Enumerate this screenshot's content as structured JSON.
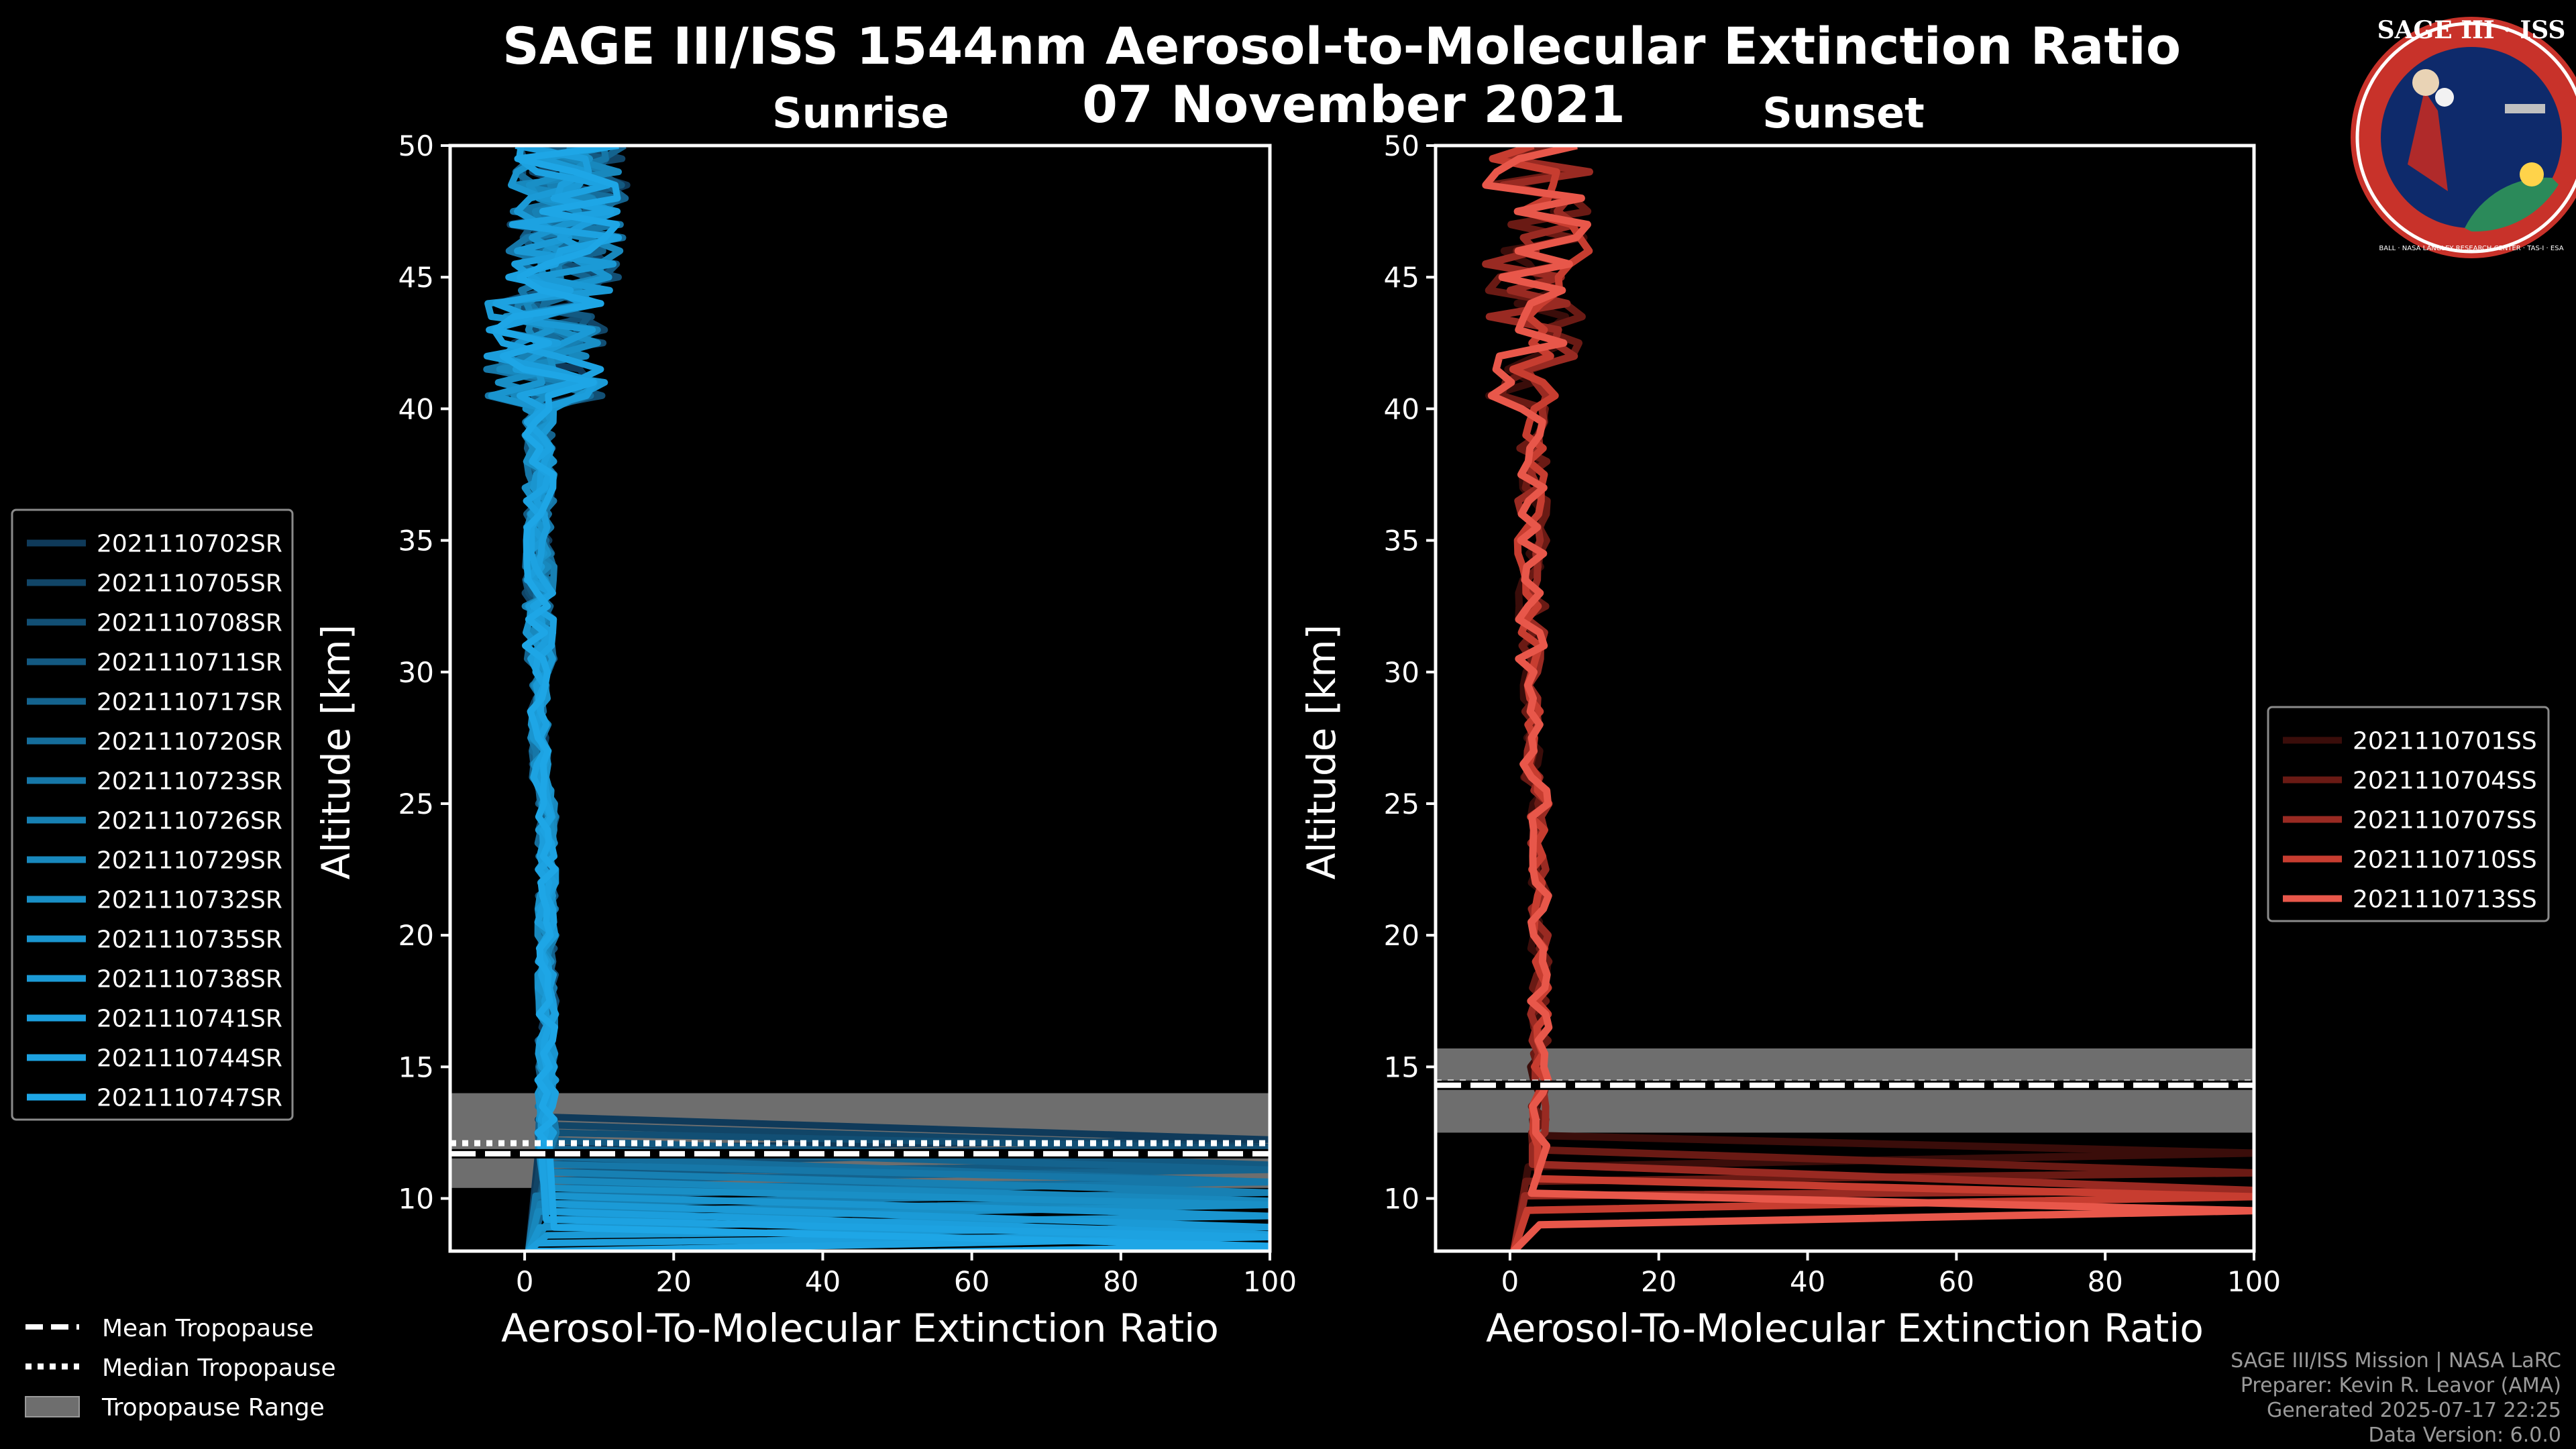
{
  "chart_data": {
    "type": "line",
    "title": "SAGE III/ISS 1544nm Aerosol-to-Molecular Extinction Ratio",
    "subtitle": "07 November 2021",
    "panels": [
      {
        "name": "Sunrise",
        "title": "Sunrise",
        "xlabel": "Aerosol-To-Molecular Extinction Ratio",
        "ylabel": "Altitude [km]",
        "xlim": [
          -10,
          100
        ],
        "ylim": [
          8,
          50
        ],
        "xticks": [
          0,
          20,
          40,
          60,
          80,
          100
        ],
        "yticks": [
          10,
          15,
          20,
          25,
          30,
          35,
          40,
          45,
          50
        ],
        "tropopause": {
          "mean_km": 11.7,
          "median_km": 12.1,
          "range_km": [
            10.4,
            14.0
          ]
        },
        "series": [
          {
            "name": "2021110702SR",
            "color": "#0f3a5a"
          },
          {
            "name": "2021110705SR",
            "color": "#114567"
          },
          {
            "name": "2021110708SR",
            "color": "#124f74"
          },
          {
            "name": "2021110711SR",
            "color": "#135981"
          },
          {
            "name": "2021110717SR",
            "color": "#14638e"
          },
          {
            "name": "2021110720SR",
            "color": "#156d9b"
          },
          {
            "name": "2021110723SR",
            "color": "#1677a8"
          },
          {
            "name": "2021110726SR",
            "color": "#1780b3"
          },
          {
            "name": "2021110729SR",
            "color": "#1888bd"
          },
          {
            "name": "2021110732SR",
            "color": "#198fc6"
          },
          {
            "name": "2021110735SR",
            "color": "#1a95cf"
          },
          {
            "name": "2021110738SR",
            "color": "#1b9ad6"
          },
          {
            "name": "2021110741SR",
            "color": "#1c9edc"
          },
          {
            "name": "2021110744SR",
            "color": "#1da2e1"
          },
          {
            "name": "2021110747SR",
            "color": "#1ea6e6"
          }
        ]
      },
      {
        "name": "Sunset",
        "title": "Sunset",
        "xlabel": "Aerosol-To-Molecular Extinction Ratio",
        "ylabel": "Altitude [km]",
        "xlim": [
          -10,
          100
        ],
        "ylim": [
          8,
          50
        ],
        "xticks": [
          0,
          20,
          40,
          60,
          80,
          100
        ],
        "yticks": [
          10,
          15,
          20,
          25,
          30,
          35,
          40,
          45,
          50
        ],
        "tropopause": {
          "mean_km": 14.3,
          "median_km": 14.4,
          "range_km": [
            12.5,
            15.7
          ]
        },
        "series": [
          {
            "name": "2021110701SS",
            "color": "#3a0d0a"
          },
          {
            "name": "2021110704SS",
            "color": "#6a1a14"
          },
          {
            "name": "2021110707SS",
            "color": "#992a22"
          },
          {
            "name": "2021110710SS",
            "color": "#c73d30"
          },
          {
            "name": "2021110713SS",
            "color": "#e8574a"
          }
        ]
      }
    ],
    "tropopause_legend": [
      "Mean Tropopause",
      "Median Tropopause",
      "Tropopause Range"
    ]
  },
  "credits": [
    "SAGE III/ISS Mission | NASA LaRC",
    "Preparer: Kevin R. Leavor (AMA)",
    "Generated 2025-07-17 22:25",
    "Data Version: 6.0.0"
  ],
  "logo": {
    "title": "SAGE III · ISS",
    "ring_text": "BALL · NASA LANGLEY RESEARCH CENTER · TAS-I · ESA"
  }
}
